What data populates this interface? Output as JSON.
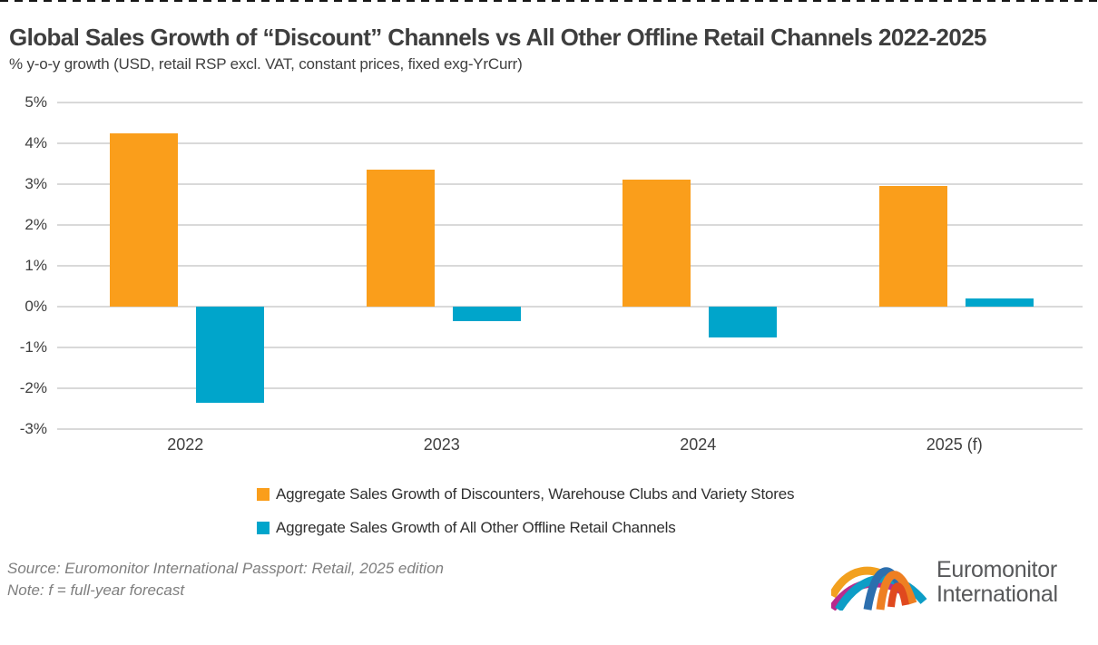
{
  "page": {
    "title": "Global Sales Growth of “Discount” Channels vs All Other Offline Retail Channels 2022-2025",
    "subtitle": "% y-o-y growth (USD, retail RSP excl. VAT, constant prices, fixed exg-YrCurr)",
    "source_line": "Source: Euromonitor International Passport: Retail, 2025 edition",
    "note_line": "Note: f = full-year forecast",
    "logo": {
      "line1": "Euromonitor",
      "line2": "International"
    }
  },
  "chart_data": {
    "type": "bar",
    "title": "Global Sales Growth of “Discount” Channels vs All Other Offline Retail Channels 2022-2025",
    "subtitle": "% y-o-y growth (USD, retail RSP excl. VAT, constant prices, fixed exg-YrCurr)",
    "categories": [
      "2022",
      "2023",
      "2024",
      "2025 (f)"
    ],
    "series": [
      {
        "key": "discounters",
        "name": "Aggregate Sales Growth of Discounters, Warehouse Clubs and Variety Stores",
        "color": "#FA9E1B",
        "values": [
          4.25,
          3.35,
          3.1,
          2.95
        ]
      },
      {
        "key": "other-offline",
        "name": "Aggregate Sales Growth of All Other Offline Retail Channels",
        "color": "#00A5CB",
        "values": [
          -2.35,
          -0.35,
          -0.75,
          0.2
        ]
      }
    ],
    "xlabel": "",
    "ylabel": "",
    "ylim": [
      -3,
      5
    ],
    "ytick_step": 1,
    "ytick_format": "{v}%",
    "grid": true,
    "legend_position": "bottom",
    "colors": {
      "gridline": "#D9D9D9",
      "axis_text": "#3F3F3F"
    }
  }
}
